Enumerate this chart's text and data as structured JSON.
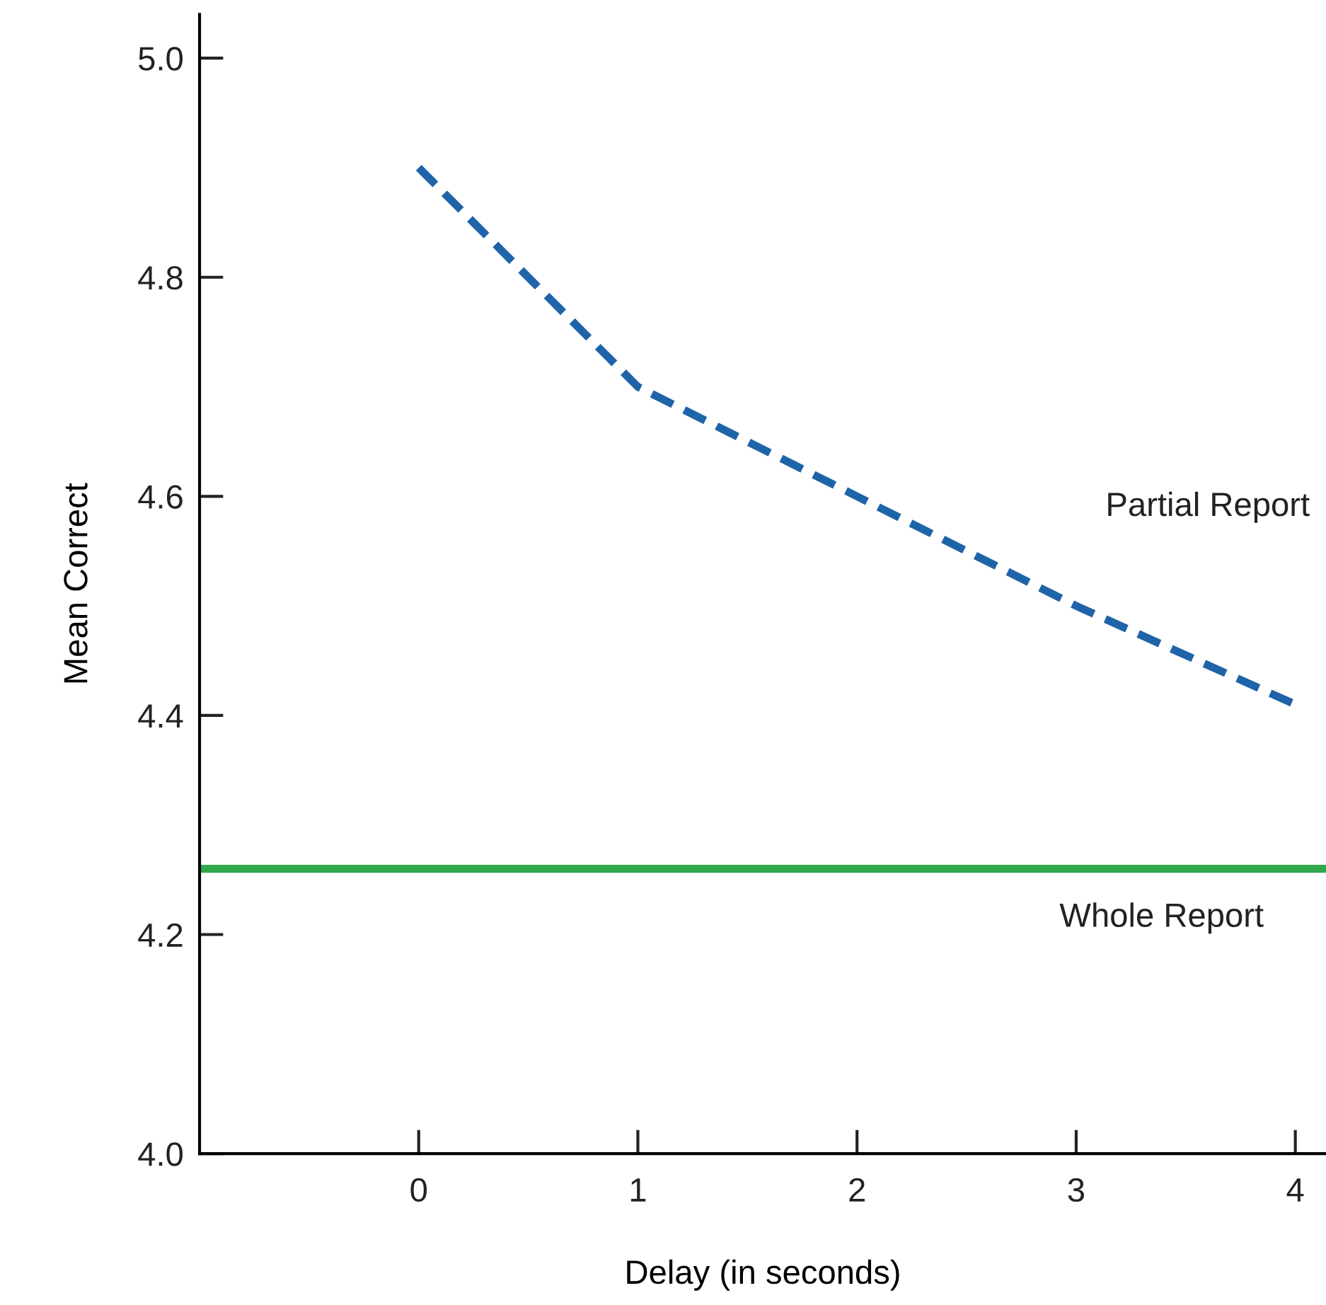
{
  "chart_data": {
    "type": "line",
    "xlabel": "Delay (in seconds)",
    "ylabel": "Mean Correct",
    "x": [
      0,
      1,
      2,
      3,
      4
    ],
    "series": [
      {
        "name": "Partial Report",
        "color": "#1f64a8",
        "values": [
          4.9,
          4.7,
          4.6,
          4.5,
          4.41
        ],
        "line_style": "dashed",
        "marker": "none"
      }
    ],
    "ref_lines": [
      {
        "axis": "y",
        "value": 4.26,
        "label": "Whole Report",
        "color": "#2fa84a",
        "line_style": "solid"
      }
    ],
    "xlim": [
      -1,
      4.14
    ],
    "xticks": [
      0,
      1,
      2,
      3,
      4
    ],
    "ylim": [
      4.0,
      5.04
    ],
    "yticks": [
      {
        "value": 4.0,
        "label": "4.0"
      },
      4.2,
      4.4,
      4.6,
      4.8,
      {
        "value": 5.0,
        "label": "5.0"
      }
    ],
    "grid": false,
    "legend": false
  }
}
